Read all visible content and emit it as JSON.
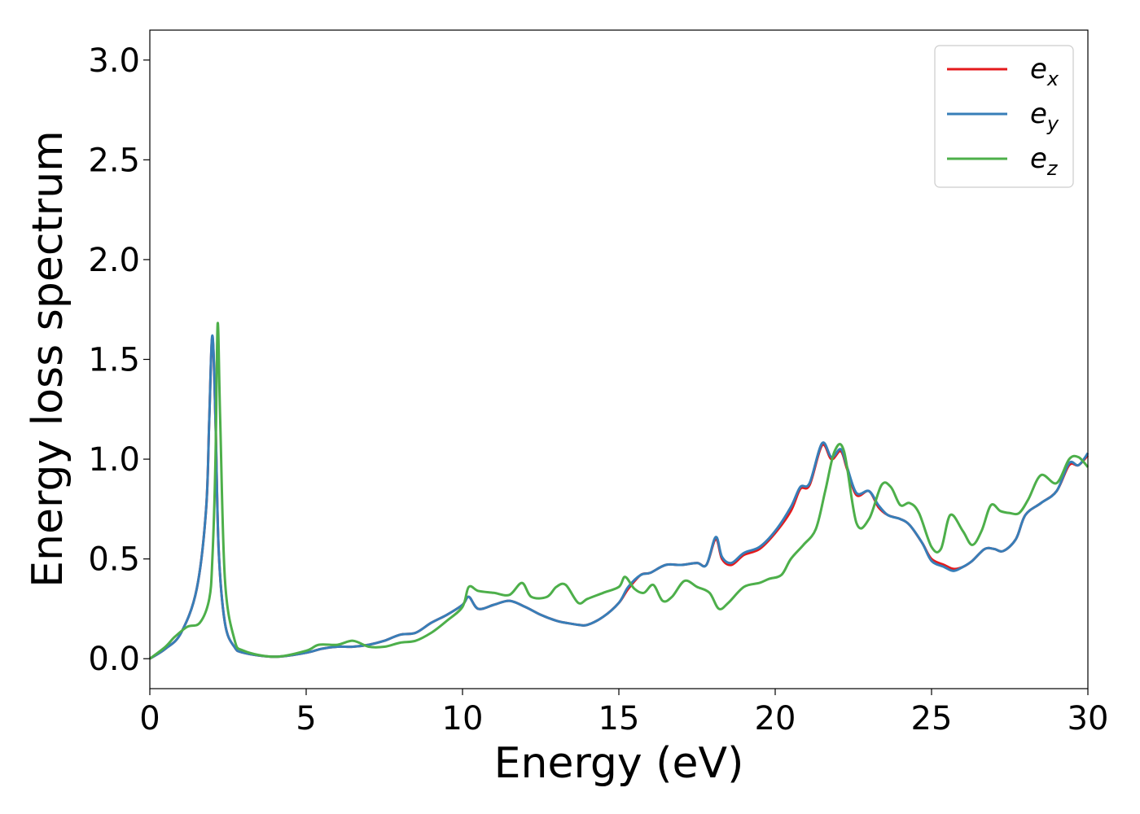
{
  "chart_data": {
    "type": "line",
    "xlabel": "Energy (eV)",
    "ylabel": "Energy loss spectrum",
    "xlim": [
      0,
      30
    ],
    "ylim": [
      -0.15,
      3.15
    ],
    "xticks": [
      0,
      5,
      10,
      15,
      20,
      25,
      30
    ],
    "xtick_labels": [
      "0",
      "5",
      "10",
      "15",
      "20",
      "25",
      "30"
    ],
    "yticks": [
      0.0,
      0.5,
      1.0,
      1.5,
      2.0,
      2.5,
      3.0
    ],
    "ytick_labels": [
      "0.0",
      "0.5",
      "1.0",
      "1.5",
      "2.0",
      "2.5",
      "3.0"
    ],
    "grid": false,
    "legend_position": "top-right",
    "series": [
      {
        "name": "e",
        "subscript": "x",
        "color": "#e41a1c",
        "x": [
          0,
          0.5,
          1.0,
          1.5,
          1.8,
          1.9,
          2.0,
          2.1,
          2.2,
          2.4,
          2.7,
          3.0,
          4.0,
          5.0,
          5.5,
          6.0,
          6.5,
          7.0,
          7.5,
          8.0,
          8.5,
          9.0,
          9.5,
          10.0,
          10.2,
          10.5,
          11.0,
          11.5,
          12.0,
          12.5,
          13.0,
          13.3,
          13.7,
          14.0,
          14.5,
          15.0,
          15.3,
          15.7,
          16.0,
          16.5,
          17.0,
          17.5,
          17.8,
          18.1,
          18.3,
          18.6,
          19.0,
          19.5,
          20.0,
          20.5,
          20.8,
          21.1,
          21.5,
          21.8,
          22.1,
          22.3,
          22.6,
          23.0,
          23.3,
          23.6,
          24.0,
          24.3,
          24.7,
          25.0,
          25.4,
          25.7,
          26.0,
          26.3,
          26.7,
          27.0,
          27.3,
          27.7,
          28.0,
          28.5,
          29.0,
          29.4,
          29.7,
          30.0
        ],
        "y": [
          0.0,
          0.05,
          0.13,
          0.35,
          0.75,
          1.2,
          1.61,
          1.2,
          0.55,
          0.18,
          0.06,
          0.03,
          0.01,
          0.03,
          0.05,
          0.06,
          0.06,
          0.07,
          0.09,
          0.12,
          0.13,
          0.18,
          0.22,
          0.27,
          0.31,
          0.25,
          0.27,
          0.29,
          0.26,
          0.22,
          0.19,
          0.18,
          0.17,
          0.17,
          0.21,
          0.28,
          0.35,
          0.42,
          0.43,
          0.47,
          0.47,
          0.48,
          0.47,
          0.6,
          0.5,
          0.47,
          0.52,
          0.55,
          0.63,
          0.74,
          0.85,
          0.87,
          1.07,
          1.0,
          1.04,
          0.95,
          0.82,
          0.84,
          0.76,
          0.72,
          0.7,
          0.67,
          0.58,
          0.5,
          0.47,
          0.45,
          0.46,
          0.49,
          0.55,
          0.55,
          0.54,
          0.6,
          0.72,
          0.78,
          0.84,
          0.97,
          0.97,
          1.02
        ]
      },
      {
        "name": "e",
        "subscript": "y",
        "color": "#377eb8",
        "x": [
          0,
          0.5,
          1.0,
          1.5,
          1.8,
          1.9,
          2.0,
          2.1,
          2.2,
          2.4,
          2.7,
          3.0,
          4.0,
          5.0,
          5.5,
          6.0,
          6.5,
          7.0,
          7.5,
          8.0,
          8.5,
          9.0,
          9.5,
          10.0,
          10.2,
          10.5,
          11.0,
          11.5,
          12.0,
          12.5,
          13.0,
          13.3,
          13.7,
          14.0,
          14.5,
          15.0,
          15.3,
          15.7,
          16.0,
          16.5,
          17.0,
          17.5,
          17.8,
          18.1,
          18.3,
          18.6,
          19.0,
          19.5,
          20.0,
          20.5,
          20.8,
          21.1,
          21.5,
          21.8,
          22.1,
          22.3,
          22.6,
          23.0,
          23.3,
          23.6,
          24.0,
          24.3,
          24.7,
          25.0,
          25.4,
          25.7,
          26.0,
          26.3,
          26.7,
          27.0,
          27.3,
          27.7,
          28.0,
          28.5,
          29.0,
          29.4,
          29.7,
          30.0
        ],
        "y": [
          0.0,
          0.05,
          0.13,
          0.35,
          0.75,
          1.2,
          1.62,
          1.2,
          0.55,
          0.18,
          0.06,
          0.03,
          0.01,
          0.03,
          0.05,
          0.06,
          0.06,
          0.07,
          0.09,
          0.12,
          0.13,
          0.18,
          0.22,
          0.27,
          0.31,
          0.25,
          0.27,
          0.29,
          0.26,
          0.22,
          0.19,
          0.18,
          0.17,
          0.17,
          0.21,
          0.28,
          0.36,
          0.42,
          0.43,
          0.47,
          0.47,
          0.48,
          0.47,
          0.61,
          0.51,
          0.48,
          0.53,
          0.56,
          0.64,
          0.76,
          0.86,
          0.88,
          1.08,
          1.01,
          1.05,
          0.96,
          0.83,
          0.84,
          0.77,
          0.72,
          0.7,
          0.67,
          0.58,
          0.49,
          0.46,
          0.44,
          0.46,
          0.49,
          0.55,
          0.55,
          0.54,
          0.6,
          0.72,
          0.78,
          0.84,
          0.98,
          0.97,
          1.03
        ]
      },
      {
        "name": "e",
        "subscript": "z",
        "color": "#4daf4a",
        "x": [
          0,
          0.5,
          0.8,
          1.2,
          1.6,
          1.9,
          2.0,
          2.1,
          2.17,
          2.25,
          2.4,
          2.7,
          3.0,
          4.0,
          5.0,
          5.4,
          6.0,
          6.5,
          7.0,
          7.5,
          8.0,
          8.5,
          9.0,
          9.5,
          10.0,
          10.2,
          10.5,
          11.0,
          11.5,
          11.9,
          12.2,
          12.7,
          13.0,
          13.3,
          13.7,
          14.0,
          14.5,
          15.0,
          15.2,
          15.5,
          15.8,
          16.1,
          16.4,
          16.7,
          17.1,
          17.5,
          17.9,
          18.2,
          18.5,
          19.0,
          19.5,
          19.8,
          20.2,
          20.5,
          20.9,
          21.3,
          21.6,
          21.9,
          22.2,
          22.6,
          23.0,
          23.4,
          23.7,
          24.0,
          24.3,
          24.6,
          25.0,
          25.3,
          25.6,
          26.0,
          26.3,
          26.6,
          26.9,
          27.2,
          27.5,
          27.8,
          28.1,
          28.5,
          29.0,
          29.4,
          29.7,
          30.0
        ],
        "y": [
          0.0,
          0.06,
          0.11,
          0.16,
          0.18,
          0.3,
          0.5,
          1.0,
          1.68,
          1.2,
          0.4,
          0.1,
          0.04,
          0.01,
          0.04,
          0.07,
          0.07,
          0.09,
          0.06,
          0.06,
          0.08,
          0.09,
          0.13,
          0.19,
          0.26,
          0.36,
          0.34,
          0.33,
          0.32,
          0.38,
          0.31,
          0.31,
          0.36,
          0.37,
          0.28,
          0.3,
          0.33,
          0.36,
          0.41,
          0.35,
          0.33,
          0.37,
          0.29,
          0.31,
          0.39,
          0.36,
          0.33,
          0.25,
          0.28,
          0.36,
          0.38,
          0.4,
          0.42,
          0.5,
          0.57,
          0.65,
          0.84,
          1.04,
          1.04,
          0.68,
          0.7,
          0.87,
          0.86,
          0.77,
          0.78,
          0.73,
          0.56,
          0.55,
          0.72,
          0.64,
          0.57,
          0.64,
          0.77,
          0.74,
          0.73,
          0.73,
          0.8,
          0.92,
          0.88,
          1.0,
          1.01,
          0.96
        ]
      }
    ]
  }
}
